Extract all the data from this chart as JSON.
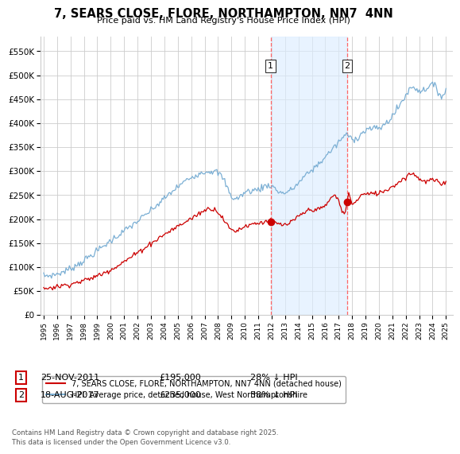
{
  "title": "7, SEARS CLOSE, FLORE, NORTHAMPTON, NN7  4NN",
  "subtitle": "Price paid vs. HM Land Registry's House Price Index (HPI)",
  "background_color": "#ffffff",
  "plot_bg_color": "#ffffff",
  "grid_color": "#cccccc",
  "hpi_color": "#7bafd4",
  "property_color": "#cc0000",
  "shade_color": "#ddeeff",
  "transaction1_date": "25-NOV-2011",
  "transaction1_price": 195000,
  "transaction1_pct": "28%",
  "transaction2_date": "18-AUG-2017",
  "transaction2_price": 235000,
  "transaction2_pct": "38%",
  "legend_property": "7, SEARS CLOSE, FLORE, NORTHAMPTON, NN7 4NN (detached house)",
  "legend_hpi": "HPI: Average price, detached house, West Northamptonshire",
  "footnote": "Contains HM Land Registry data © Crown copyright and database right 2025.\nThis data is licensed under the Open Government Licence v3.0.",
  "xmin": 1994.75,
  "xmax": 2025.5,
  "ymin": 0,
  "ymax": 580000,
  "yticks": [
    0,
    50000,
    100000,
    150000,
    200000,
    250000,
    300000,
    350000,
    400000,
    450000,
    500000,
    550000
  ],
  "xticks": [
    1995,
    1996,
    1997,
    1998,
    1999,
    2000,
    2001,
    2002,
    2003,
    2004,
    2005,
    2006,
    2007,
    2008,
    2009,
    2010,
    2011,
    2012,
    2013,
    2014,
    2015,
    2016,
    2017,
    2018,
    2019,
    2020,
    2021,
    2022,
    2023,
    2024,
    2025
  ],
  "transaction1_x": 2011.92,
  "transaction2_x": 2017.63,
  "transaction1_y": 195000,
  "transaction2_y": 235000,
  "vline_color": "#ff6666",
  "num_box_edgecolor": "#333333",
  "table_num_edgecolor": "#cc0000"
}
